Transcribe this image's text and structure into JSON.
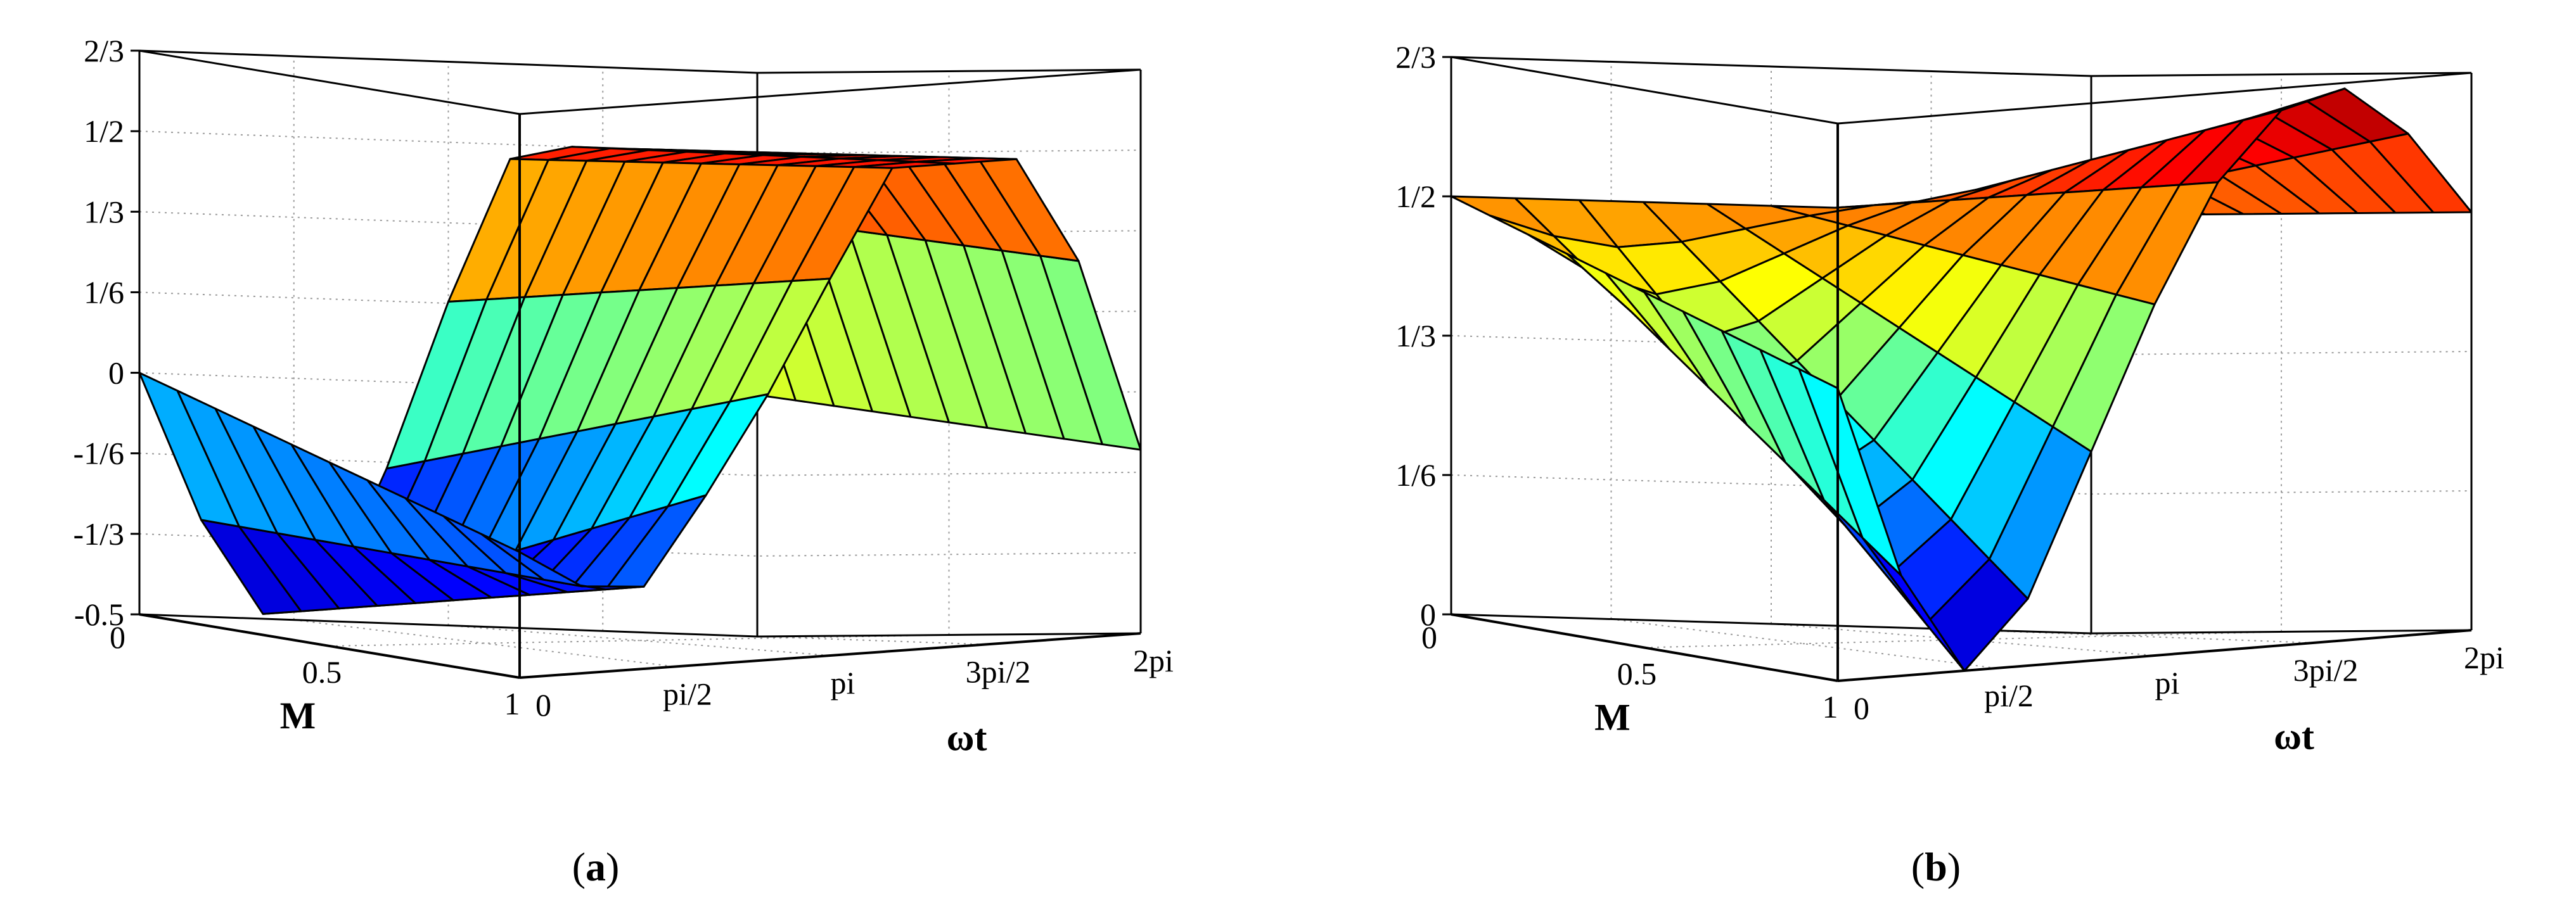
{
  "chart_data": [
    {
      "type": "surface",
      "panel_label": "(a)",
      "panel_letter": "a",
      "xlabel": "ωt",
      "ylabel": "M",
      "zlabel": "",
      "x_ticks": [
        "0",
        "pi/2",
        "pi",
        "3pi/2",
        "2pi"
      ],
      "y_ticks": [
        "0",
        "0.5",
        "1"
      ],
      "z_ticks": [
        "-0.5",
        "-1/3",
        "-1/6",
        "0",
        "1/6",
        "1/3",
        "1/2",
        "2/3"
      ],
      "xlim": [
        0,
        6.2832
      ],
      "ylim": [
        0,
        1
      ],
      "zlim": [
        -0.5,
        0.6667
      ],
      "colormap": "jet",
      "grid": true,
      "surface": {
        "omega_t": [
          0,
          0.6283,
          1.2566,
          1.885,
          2.5133,
          3.1416,
          3.7699,
          4.3982,
          5.0265,
          5.6549,
          6.2832
        ],
        "M": [
          0,
          0.1,
          0.2,
          0.3,
          0.4,
          0.5,
          0.6,
          0.7,
          0.8,
          0.9,
          1
        ],
        "z_at_M0": [
          0,
          -0.3,
          -0.49,
          -0.47,
          -0.18,
          0.17,
          0.47,
          0.5,
          0.5,
          0.38,
          0
        ],
        "z_at_M1": [
          -0.24,
          -0.32,
          -0.33,
          -0.15,
          0.05,
          0.28,
          0.5,
          0.5,
          0.5,
          0.28,
          -0.12
        ]
      }
    },
    {
      "type": "surface",
      "panel_label": "(b)",
      "panel_letter": "b",
      "xlabel": "ωt",
      "ylabel": "M",
      "zlabel": "",
      "x_ticks": [
        "0",
        "pi/2",
        "pi",
        "3pi/2",
        "2pi"
      ],
      "y_ticks": [
        "0",
        "0.5",
        "1"
      ],
      "z_ticks": [
        "0",
        "1/6",
        "1/3",
        "1/2",
        "2/3"
      ],
      "xlim": [
        0,
        6.2832
      ],
      "ylim": [
        0,
        1
      ],
      "zlim": [
        0,
        0.6667
      ],
      "colormap": "jet",
      "grid": true,
      "surface": {
        "omega_t": [
          0,
          0.6283,
          1.2566,
          1.885,
          2.5133,
          3.1416,
          3.7699,
          4.3982,
          5.0265,
          5.6549,
          6.2832
        ],
        "M": [
          0,
          0.1,
          0.2,
          0.3,
          0.4,
          0.5,
          0.6,
          0.7,
          0.8,
          0.9,
          1
        ],
        "z_at_M0": [
          0.5,
          0.5,
          0.5,
          0.5,
          0.5,
          0.5,
          0.5,
          0.5,
          0.5,
          0.5,
          0.5
        ],
        "z_at_M1": [
          0.35,
          0.12,
          0.0,
          0.08,
          0.25,
          0.42,
          0.56,
          0.64,
          0.66,
          0.6,
          0.5
        ]
      }
    }
  ]
}
